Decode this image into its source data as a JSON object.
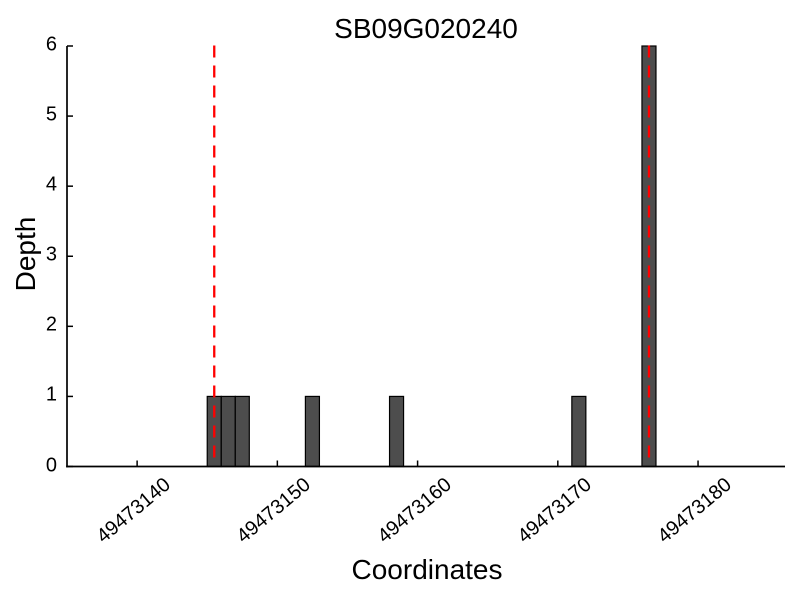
{
  "chart_data": {
    "type": "bar",
    "title": "SB09G020240",
    "xlabel": "Coordinates",
    "ylabel": "Depth",
    "x": [
      49473145,
      49473146,
      49473147,
      49473152,
      49473158,
      49473171,
      49473176
    ],
    "values": [
      1,
      1,
      1,
      1,
      1,
      1,
      6
    ],
    "bar_width": 1,
    "bar_align": "left-edge",
    "vlines": [
      49473145.5,
      49473176.5
    ],
    "vline_style": "dashed",
    "xlim": [
      49473135,
      49473186.2
    ],
    "ylim": [
      0,
      6
    ],
    "xticks": [
      49473140,
      49473150,
      49473160,
      49473170,
      49473180
    ],
    "xtick_labels": [
      "49473140",
      "49473150",
      "49473160",
      "49473170",
      "49473180"
    ],
    "xtick_rotation_deg": 40,
    "yticks": [
      0,
      1,
      2,
      3,
      4,
      5,
      6
    ],
    "ytick_labels": [
      "0",
      "1",
      "2",
      "3",
      "4",
      "5",
      "6"
    ],
    "grid": false,
    "legend": null,
    "tick_direction": "in",
    "colors": {
      "bar_fill": "#4d4d4d",
      "bar_edge": "#000000",
      "vline": "#ff0000",
      "axis": "#000000",
      "background": "#ffffff",
      "text": "#000000"
    }
  }
}
